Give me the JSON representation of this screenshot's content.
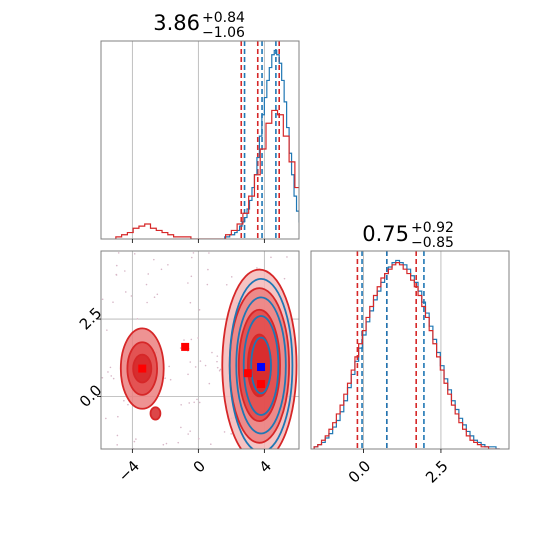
{
  "figure": {
    "type": "corner_plot",
    "colors": {
      "series_a": "#1f77b4",
      "series_b": "#d62728",
      "marker_truth": "#0000ff",
      "marker_points": "#ff0000",
      "axis_frame": "#808080",
      "grid": "#b0b0b0"
    }
  },
  "chart_data": [
    {
      "id": "param1-marginal",
      "type": "histogram",
      "title": {
        "base": "3.86",
        "plus": "+0.84",
        "minus": "−1.06"
      },
      "xlim": [
        -5.9,
        6.1
      ],
      "grid": true,
      "quantile_lines": {
        "series_a": [
          2.8,
          3.86,
          4.7
        ],
        "series_b": [
          2.6,
          3.6,
          4.9
        ]
      },
      "series": [
        {
          "key": "series_a",
          "x_start": 1.6,
          "bin_width": 0.15,
          "counts": [
            1,
            1,
            2,
            2,
            3,
            4,
            6,
            8,
            10,
            14,
            18,
            24,
            30,
            38,
            48,
            58,
            66,
            74,
            80,
            86,
            88,
            86,
            82,
            74,
            64,
            52,
            40,
            30,
            20,
            13,
            8,
            5,
            3,
            2,
            1,
            1,
            1,
            0
          ]
        },
        {
          "key": "series_b",
          "x_start": -5.0,
          "bin_width": 0.35,
          "counts": [
            1,
            2,
            3,
            5,
            6,
            7,
            5,
            4,
            3,
            2,
            1,
            1,
            1,
            0,
            0,
            0,
            0,
            0,
            0,
            2,
            4,
            7,
            12,
            20,
            30,
            42,
            54,
            60,
            58,
            48,
            36,
            24,
            14,
            8,
            4,
            2,
            1
          ]
        }
      ]
    },
    {
      "id": "param2-marginal",
      "type": "histogram",
      "title": {
        "base": "0.75",
        "plus": "+0.92",
        "minus": "−0.85"
      },
      "xlim": [
        -1.7,
        4.7
      ],
      "xticks": [
        {
          "v": 0.0,
          "label": "0.0"
        },
        {
          "v": 2.5,
          "label": "2.5"
        }
      ],
      "grid": true,
      "quantile_lines": {
        "series_a": [
          -0.05,
          0.75,
          1.95
        ],
        "series_b": [
          -0.2,
          0.75,
          1.7
        ]
      },
      "series": [
        {
          "key": "series_a",
          "x_start": -1.6,
          "bin_width": 0.12,
          "counts": [
            1,
            2,
            3,
            5,
            7,
            10,
            13,
            17,
            22,
            28,
            34,
            40,
            46,
            52,
            58,
            63,
            68,
            72,
            76,
            80,
            83,
            85,
            86,
            85,
            84,
            82,
            79,
            76,
            72,
            67,
            62,
            56,
            50,
            44,
            38,
            32,
            27,
            22,
            18,
            14,
            11,
            8,
            6,
            4,
            3,
            2,
            1,
            1,
            1,
            0
          ]
        },
        {
          "key": "series_b",
          "x_start": -1.6,
          "bin_width": 0.12,
          "counts": [
            1,
            2,
            4,
            6,
            9,
            12,
            16,
            20,
            25,
            30,
            36,
            42,
            48,
            54,
            60,
            65,
            70,
            74,
            78,
            80,
            82,
            84,
            85,
            84,
            82,
            80,
            77,
            74,
            70,
            65,
            60,
            54,
            48,
            42,
            36,
            30,
            25,
            20,
            16,
            12,
            9,
            6,
            4,
            3,
            2,
            1,
            1,
            0,
            0,
            0
          ]
        }
      ]
    },
    {
      "id": "joint",
      "type": "scatter",
      "xlim": [
        -5.9,
        6.1
      ],
      "ylim": [
        -1.7,
        4.7
      ],
      "xticks": [
        {
          "v": -4,
          "label": "−4"
        },
        {
          "v": 0,
          "label": "0"
        },
        {
          "v": 4,
          "label": "4"
        }
      ],
      "yticks": [
        {
          "v": 0.0,
          "label": "0.0"
        },
        {
          "v": 2.5,
          "label": "2.5"
        }
      ],
      "grid": true,
      "contours": [
        {
          "key": "series_b",
          "cx": -3.4,
          "cy": 0.9,
          "rx": [
            0.55,
            0.9,
            1.3
          ],
          "ry": [
            0.45,
            0.85,
            1.3
          ]
        },
        {
          "key": "series_b",
          "cx": -2.6,
          "cy": -0.55,
          "rx": [
            0.3
          ],
          "ry": [
            0.2
          ]
        },
        {
          "key": "series_b",
          "cx": 3.7,
          "cy": 1.0,
          "rx": [
            0.7,
            1.25,
            1.8,
            2.25
          ],
          "ry": [
            1.0,
            1.8,
            2.5,
            3.1
          ]
        },
        {
          "key": "series_a",
          "cx": 3.8,
          "cy": 1.0,
          "rx": [
            0.6,
            1.05,
            1.5,
            1.9
          ],
          "ry": [
            0.9,
            1.6,
            2.2,
            2.8
          ]
        }
      ],
      "markers": [
        {
          "key": "marker_points",
          "x": -3.4,
          "y": 0.9
        },
        {
          "key": "marker_points",
          "x": -0.8,
          "y": 1.6
        },
        {
          "key": "marker_points",
          "x": -0.8,
          "y": -2.0
        },
        {
          "key": "marker_points",
          "x": 3.0,
          "y": 0.75
        },
        {
          "key": "marker_points",
          "x": 3.8,
          "y": 0.4
        },
        {
          "key": "marker_truth",
          "x": 3.8,
          "y": 0.95
        }
      ]
    }
  ]
}
